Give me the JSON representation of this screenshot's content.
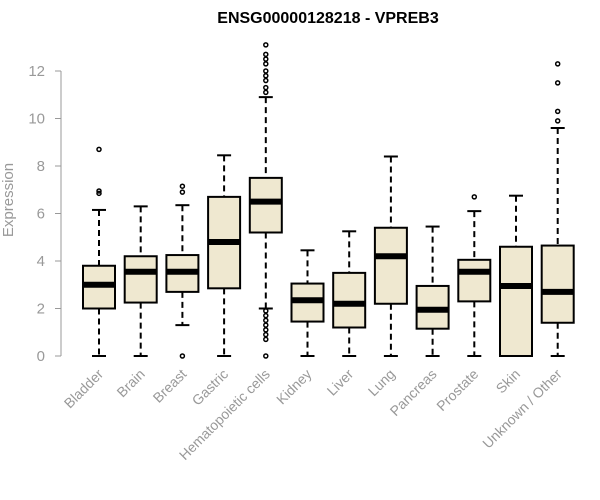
{
  "chart_data": {
    "type": "box",
    "title": "ENSG00000128218 - VPREB3",
    "ylabel": "Expression",
    "xlabel": "",
    "ylim": [
      0,
      13.2
    ],
    "yticks": [
      0,
      2,
      4,
      6,
      8,
      10,
      12
    ],
    "box_fill": "#EFE8D0",
    "categories": [
      "Bladder",
      "Brain",
      "Breast",
      "Gastric",
      "Hematopoietic cells",
      "Kidney",
      "Liver",
      "Lung",
      "Pancreas",
      "Prostate",
      "Skin",
      "Unknown / Other"
    ],
    "boxes": [
      {
        "min": 0,
        "q1": 2.0,
        "median": 3.0,
        "q3": 3.8,
        "max": 6.15,
        "outliers": [
          6.85,
          6.95,
          8.7
        ]
      },
      {
        "min": 0,
        "q1": 2.25,
        "median": 3.55,
        "q3": 4.2,
        "max": 6.3,
        "outliers": []
      },
      {
        "min": 1.3,
        "q1": 2.7,
        "median": 3.55,
        "q3": 4.25,
        "max": 6.35,
        "outliers": [
          0,
          6.9,
          7.15
        ]
      },
      {
        "min": 0,
        "q1": 2.85,
        "median": 4.8,
        "q3": 6.7,
        "max": 8.45,
        "outliers": []
      },
      {
        "min": 2.0,
        "q1": 5.2,
        "median": 6.5,
        "q3": 7.5,
        "max": 10.9,
        "outliers": [
          0,
          0.7,
          0.9,
          1.1,
          1.3,
          1.5,
          1.7,
          1.9,
          11.1,
          11.3,
          11.6,
          11.8,
          12.0,
          12.3,
          12.5,
          12.7,
          13.1
        ]
      },
      {
        "min": 0,
        "q1": 1.45,
        "median": 2.35,
        "q3": 3.05,
        "max": 4.45,
        "outliers": []
      },
      {
        "min": 0,
        "q1": 1.2,
        "median": 2.2,
        "q3": 3.5,
        "max": 5.25,
        "outliers": []
      },
      {
        "min": 0,
        "q1": 2.2,
        "median": 4.2,
        "q3": 5.4,
        "max": 8.4,
        "outliers": []
      },
      {
        "min": 0,
        "q1": 1.15,
        "median": 1.95,
        "q3": 2.95,
        "max": 5.45,
        "outliers": []
      },
      {
        "min": 0,
        "q1": 2.3,
        "median": 3.55,
        "q3": 4.05,
        "max": 6.1,
        "outliers": [
          6.7
        ]
      },
      {
        "min": 0,
        "q1": 0,
        "median": 2.95,
        "q3": 4.6,
        "max": 6.75,
        "outliers": []
      },
      {
        "min": 0,
        "q1": 1.4,
        "median": 2.7,
        "q3": 4.65,
        "max": 9.6,
        "outliers": [
          9.9,
          10.3,
          11.5,
          12.3
        ]
      }
    ]
  }
}
